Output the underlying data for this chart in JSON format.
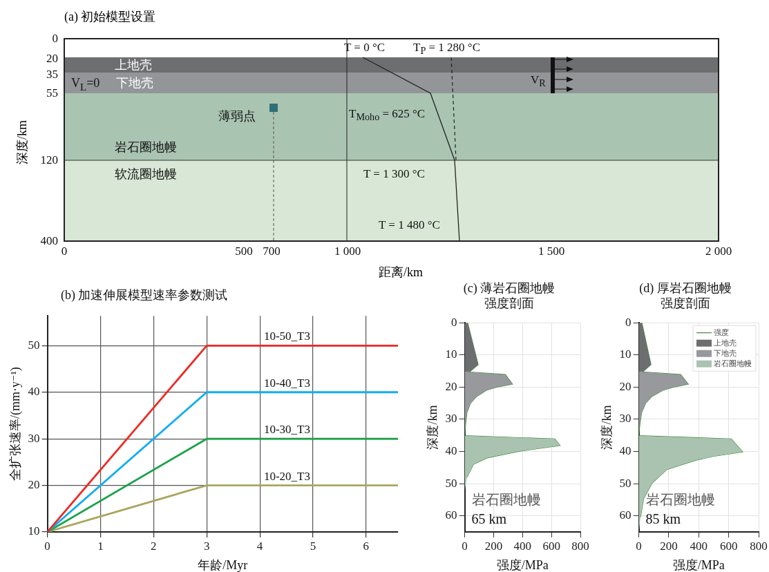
{
  "chart_data": [
    {
      "type": "other",
      "title": "(a) 初始模型设置",
      "xlabel": "距离/km",
      "ylabel": "深度/km",
      "annotations": [
        "上地壳",
        "下地壳",
        "V$_{L}$=0",
        "薄弱点",
        "岩石圈地幔",
        "软流圈地幔",
        "T = 0 °C",
        "T$_{P}$ = 1 280 °C",
        "T$_{Moho}$ = 625 °C",
        "T = 1 300 °C",
        "T = 1 480 °C",
        "V$_{R}$",
        "0",
        "20",
        "35",
        "55",
        "120",
        "400",
        "0",
        "500",
        "700",
        "1 000",
        "1 500",
        "2 000"
      ]
    },
    {
      "type": "line",
      "title": "(b) 加速伸展模型速率参数测试",
      "xlabel": "年龄/Myr",
      "ylabel": "全扩张速率/(mm·y⁻¹)",
      "x": [
        0,
        3,
        6.6
      ],
      "xlim": [
        0,
        6.6
      ],
      "xticks": [
        0,
        1,
        2,
        3,
        4,
        5,
        6
      ],
      "ylim": [
        10,
        56.4
      ],
      "yticks": [
        10,
        20,
        30,
        40,
        50
      ],
      "grid": true,
      "series": [
        {
          "name": "10-50_T3",
          "color": "#ee2a24",
          "values": [
            10,
            50,
            50
          ]
        },
        {
          "name": "10-40_T3",
          "color": "#11aef0",
          "values": [
            10,
            40,
            40
          ]
        },
        {
          "name": "10-30_T3",
          "color": "#1ca24b",
          "values": [
            10,
            30,
            30
          ]
        },
        {
          "name": "10-20_T3",
          "color": "#a9a65e",
          "values": [
            10,
            20,
            20
          ]
        }
      ]
    },
    {
      "type": "area",
      "title": "(c) 薄岩石圈地幔强度剖面",
      "xlabel": "强度/MPa",
      "ylabel": "深度/km",
      "xlim": [
        0,
        800
      ],
      "xticks": [
        0,
        200,
        400,
        600,
        800
      ],
      "ylim": [
        65,
        0
      ],
      "yticks": [
        0,
        10,
        20,
        30,
        40,
        50,
        60
      ],
      "grid": true,
      "annotations": [
        "岩石圈地幔\n65 km"
      ],
      "series": [
        {
          "color": "#6d6e70",
          "x": [
            0,
            20,
            93,
            37,
            0
          ],
          "values": [
            0,
            0,
            13,
            15.1,
            15.2
          ]
        },
        {
          "color": "#98999c",
          "x": [
            0,
            281,
            330,
            220,
            150,
            80,
            40,
            15,
            5,
            0
          ],
          "values": [
            15.2,
            16.1,
            19.1,
            20,
            21,
            23,
            25,
            28,
            32,
            35.1
          ]
        },
        {
          "color": "#aac3b0",
          "x": [
            0,
            623,
            659,
            520,
            366,
            154,
            60,
            16,
            0
          ],
          "values": [
            35.1,
            36.1,
            38.1,
            39,
            40,
            42,
            44,
            48,
            52
          ]
        },
        {
          "type": "line",
          "color": "#3d8b3d",
          "x": [
            20,
            93,
            37,
            0,
            281,
            330,
            220,
            150,
            80,
            40,
            15,
            5,
            0,
            623,
            659,
            520,
            366,
            154,
            60,
            16
          ],
          "values": [
            0,
            13,
            15.1,
            15.2,
            16.1,
            19.1,
            20,
            21,
            23,
            25,
            28,
            32,
            35.1,
            36.1,
            38.1,
            39,
            40,
            42,
            44,
            48
          ]
        }
      ]
    },
    {
      "type": "area",
      "title": "(d) 厚岩石圈地幔强度剖面",
      "xlabel": "强度/MPa",
      "ylabel": "深度/km",
      "xlim": [
        0,
        800
      ],
      "xticks": [
        0,
        200,
        400,
        600,
        800
      ],
      "ylim": [
        65,
        0
      ],
      "yticks": [
        0,
        10,
        20,
        30,
        40,
        50,
        60
      ],
      "grid": true,
      "legend": "top right",
      "annotations": [
        "岩石圈地幔\n85 km"
      ],
      "series": [
        {
          "name": "上地壳",
          "color": "#6d6e70",
          "x": [
            0,
            20,
            81,
            29,
            0
          ],
          "values": [
            0,
            0,
            13,
            15.1,
            15.2
          ]
        },
        {
          "name": "下地壳",
          "color": "#98999c",
          "x": [
            0,
            279,
            330,
            230,
            160,
            85,
            45,
            18,
            6,
            0
          ],
          "values": [
            15.2,
            16.1,
            19.1,
            20,
            21,
            23,
            25,
            28,
            32,
            35.1
          ]
        },
        {
          "name": "岩石圈地幔",
          "color": "#aac3b0",
          "x": [
            0,
            617,
            693,
            500,
            381,
            187,
            89,
            32,
            11,
            0
          ],
          "values": [
            35.1,
            36.1,
            40.1,
            41.5,
            42.7,
            45.6,
            49.8,
            54.7,
            60.4,
            65
          ]
        },
        {
          "name": "强度",
          "type": "line",
          "color": "#3d8b3d",
          "x": [
            20,
            81,
            29,
            0,
            279,
            330,
            230,
            160,
            85,
            45,
            18,
            6,
            0,
            617,
            693,
            500,
            381,
            187,
            89,
            32,
            11
          ],
          "values": [
            0,
            13,
            15.1,
            15.2,
            16.1,
            19.1,
            20,
            21,
            23,
            25,
            28,
            32,
            35.1,
            36.1,
            40.1,
            41.5,
            42.7,
            45.6,
            49.8,
            54.7,
            60.4
          ]
        }
      ]
    }
  ]
}
